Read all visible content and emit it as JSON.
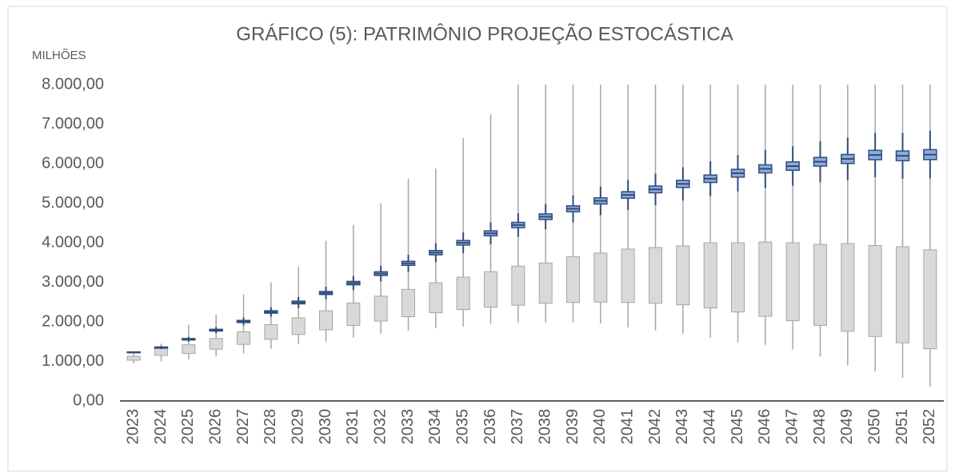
{
  "chart_data": {
    "type": "box",
    "title": "GRÁFICO (5): PATRIMÔNIO PROJEÇÃO ESTOCÁSTICA",
    "y_label": "MILHÕES",
    "categories": [
      "2023",
      "2024",
      "2025",
      "2026",
      "2027",
      "2028",
      "2029",
      "2030",
      "2031",
      "2032",
      "2033",
      "2034",
      "2035",
      "2036",
      "2037",
      "2038",
      "2039",
      "2040",
      "2041",
      "2042",
      "2043",
      "2044",
      "2045",
      "2046",
      "2047",
      "2048",
      "2049",
      "2050",
      "2051",
      "2052"
    ],
    "ylim": [
      0,
      8000
    ],
    "yticks": [
      {
        "value": 0,
        "label": "0,00"
      },
      {
        "value": 1000,
        "label": "1.000,00"
      },
      {
        "value": 2000,
        "label": "2.000,00"
      },
      {
        "value": 3000,
        "label": "3.000,00"
      },
      {
        "value": 4000,
        "label": "4.000,00"
      },
      {
        "value": 5000,
        "label": "5.000,00"
      },
      {
        "value": 6000,
        "label": "6.000,00"
      },
      {
        "value": 7000,
        "label": "7.000,00"
      },
      {
        "value": 8000,
        "label": "8.000,00"
      }
    ],
    "series": [
      {
        "color": "#d9d9d9",
        "stroke": "#a6a6a6",
        "low": [
          950,
          1000,
          1050,
          1130,
          1200,
          1320,
          1430,
          1500,
          1600,
          1700,
          1780,
          1840,
          1880,
          1950,
          1980,
          1990,
          1990,
          1960,
          1860,
          1780,
          1700,
          1600,
          1480,
          1420,
          1300,
          1120,
          900,
          750,
          580,
          360
        ],
        "q1": [
          1030,
          1150,
          1200,
          1310,
          1430,
          1560,
          1680,
          1800,
          1910,
          2020,
          2130,
          2230,
          2310,
          2370,
          2420,
          2470,
          2490,
          2500,
          2490,
          2470,
          2430,
          2350,
          2250,
          2140,
          2030,
          1910,
          1760,
          1630,
          1470,
          1320
        ],
        "q3": [
          1130,
          1330,
          1420,
          1580,
          1750,
          1930,
          2100,
          2280,
          2480,
          2650,
          2820,
          2990,
          3130,
          3270,
          3410,
          3490,
          3650,
          3740,
          3840,
          3880,
          3920,
          4000,
          4000,
          4020,
          4000,
          3960,
          3980,
          3930,
          3900,
          3820
        ],
        "high": [
          1200,
          1450,
          1930,
          2180,
          2700,
          3000,
          3400,
          4050,
          4450,
          5000,
          5620,
          5880,
          6650,
          7250,
          8000,
          8000,
          8000,
          8000,
          8000,
          8000,
          8000,
          8000,
          8000,
          8000,
          8000,
          8000,
          8000,
          8000,
          8000,
          8000
        ]
      },
      {
        "color": "#8eaadb",
        "stroke": "#2f4d7a",
        "low": [
          1210,
          1310,
          1500,
          1710,
          1910,
          2130,
          2350,
          2570,
          2800,
          3020,
          3260,
          3510,
          3740,
          3960,
          4150,
          4340,
          4520,
          4700,
          4830,
          4950,
          5070,
          5180,
          5300,
          5390,
          5440,
          5530,
          5580,
          5660,
          5620,
          5630
        ],
        "q1": [
          1220,
          1336,
          1542,
          1768,
          1984,
          2220,
          2456,
          2692,
          2938,
          3174,
          3430,
          3696,
          3942,
          4178,
          4384,
          4590,
          4786,
          4982,
          5128,
          5264,
          5400,
          5526,
          5662,
          5768,
          5834,
          5940,
          6006,
          6102,
          6078,
          6104
        ],
        "median": [
          1230,
          1350,
          1560,
          1790,
          2010,
          2250,
          2490,
          2730,
          2980,
          3220,
          3480,
          3750,
          4000,
          4240,
          4450,
          4660,
          4860,
          5060,
          5210,
          5350,
          5490,
          5620,
          5760,
          5870,
          5940,
          6050,
          6120,
          6220,
          6200,
          6230
        ],
        "q3": [
          1240,
          1364,
          1578,
          1812,
          2036,
          2280,
          2524,
          2768,
          3022,
          3266,
          3530,
          3804,
          4058,
          4302,
          4516,
          4730,
          4934,
          5138,
          5292,
          5436,
          5580,
          5714,
          5858,
          5972,
          6046,
          6160,
          6234,
          6338,
          6322,
          6356
        ],
        "high": [
          1250,
          1390,
          1620,
          1870,
          2110,
          2370,
          2630,
          2890,
          3160,
          3420,
          3700,
          3990,
          4260,
          4520,
          4750,
          4980,
          5200,
          5420,
          5590,
          5750,
          5910,
          6060,
          6220,
          6350,
          6440,
          6570,
          6660,
          6780,
          6780,
          6830
        ]
      }
    ]
  }
}
